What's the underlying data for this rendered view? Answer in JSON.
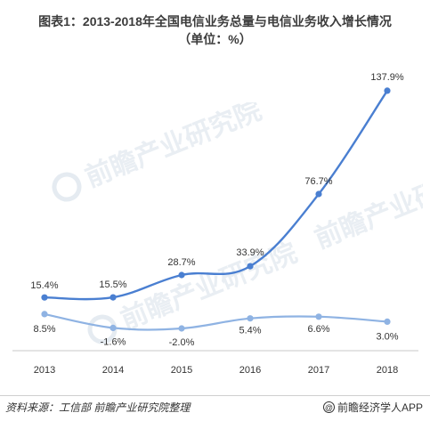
{
  "header": {
    "title_line1": "图表1：2013-2018年全国电信业务总量与电信业务收入增长情况",
    "title_line2": "（单位：%）"
  },
  "watermark": {
    "text": "前瞻产业研究院",
    "icon": "qianzhan-logo-icon",
    "color": "#e9eef3"
  },
  "footer": {
    "source": "资料来源：工信部 前瞻产业研究院整理",
    "credit": "前瞻经济学人APP",
    "credit_icon": "at-sign-icon"
  },
  "chart_data": {
    "type": "line",
    "x": [
      "2013",
      "2014",
      "2015",
      "2016",
      "2017",
      "2018"
    ],
    "series": [
      {
        "values": [
          15.4,
          15.5,
          28.7,
          33.9,
          76.7,
          137.9
        ],
        "labels": [
          "15.4%",
          "15.5%",
          "28.7%",
          "33.9%",
          "76.7%",
          "137.9%"
        ],
        "color": "#4a7fd1"
      },
      {
        "values": [
          8.5,
          -1.6,
          -2.0,
          5.4,
          6.6,
          3.0
        ],
        "labels": [
          "8.5%",
          "-1.6%",
          "-2.0%",
          "5.4%",
          "6.6%",
          "3.0%"
        ],
        "color": "#8fb3e3"
      }
    ],
    "grid": false,
    "legend": "none",
    "axis_color": "#c8c8c8"
  }
}
